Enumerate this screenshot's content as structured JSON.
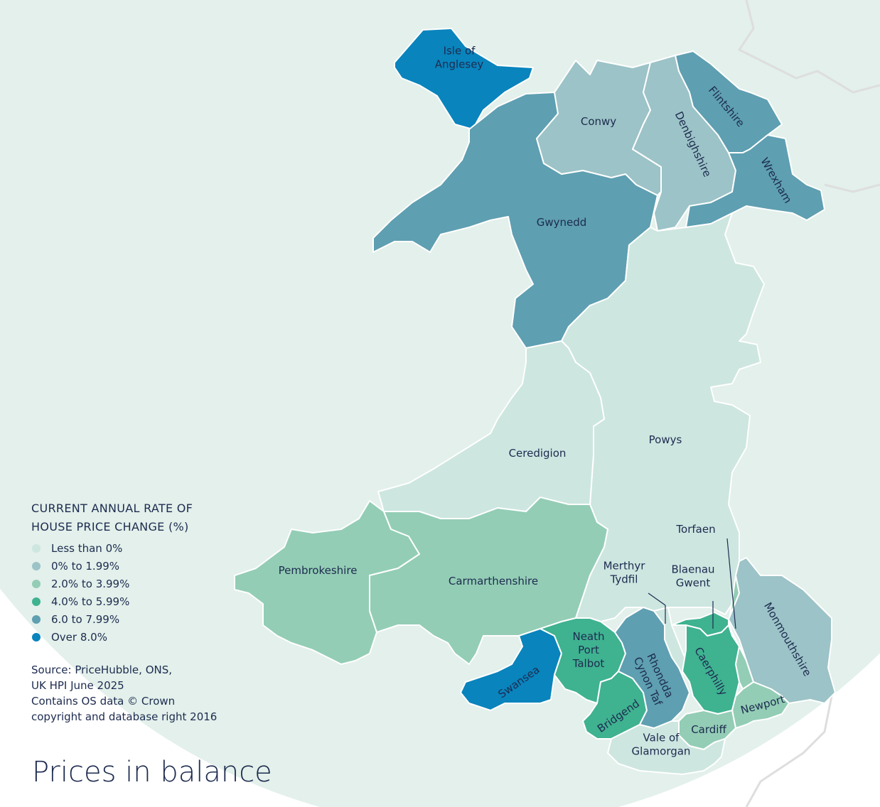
{
  "title": "Prices in balance",
  "legend": {
    "title_lines": [
      "CURRENT ANNUAL RATE OF",
      "HOUSE PRICE CHANGE (%)"
    ],
    "items": [
      {
        "label": "Less than 0%",
        "color": "#cde6e0"
      },
      {
        "label": "0% to 1.99%",
        "color": "#9cc3c7"
      },
      {
        "label": "2.0% to 3.99%",
        "color": "#93cdb5"
      },
      {
        "label": "4.0% to 5.99%",
        "color": "#3fb290"
      },
      {
        "label": "6.0 to 7.99%",
        "color": "#5e9fb1"
      },
      {
        "label": "Over 8.0%",
        "color": "#0984bd"
      }
    ]
  },
  "source_lines": [
    "Source: PriceHubble, ONS,",
    "UK HPI June 2025",
    "Contains OS data © Crown",
    "copyright and database right 2016"
  ],
  "regions": [
    {
      "name_lines": [
        "Isle of",
        "Anglesey"
      ],
      "color": "#0984bd"
    },
    {
      "name_lines": [
        "Gwynedd"
      ],
      "color": "#5e9fb1"
    },
    {
      "name_lines": [
        "Conwy"
      ],
      "color": "#9cc3c7"
    },
    {
      "name_lines": [
        "Denbighshire"
      ],
      "color": "#9cc3c7"
    },
    {
      "name_lines": [
        "Flintshire"
      ],
      "color": "#5e9fb1"
    },
    {
      "name_lines": [
        "Wrexham"
      ],
      "color": "#5e9fb1"
    },
    {
      "name_lines": [
        "Powys"
      ],
      "color": "#cde6e0"
    },
    {
      "name_lines": [
        "Ceredigion"
      ],
      "color": "#cde6e0"
    },
    {
      "name_lines": [
        "Pembrokeshire"
      ],
      "color": "#93cdb5"
    },
    {
      "name_lines": [
        "Carmarthenshire"
      ],
      "color": "#93cdb5"
    },
    {
      "name_lines": [
        "Swansea"
      ],
      "color": "#0984bd"
    },
    {
      "name_lines": [
        "Neath",
        "Port",
        "Talbot"
      ],
      "color": "#3fb290"
    },
    {
      "name_lines": [
        "Bridgend"
      ],
      "color": "#3fb290"
    },
    {
      "name_lines": [
        "Rhondda",
        "Cynon Taf"
      ],
      "color": "#5e9fb1"
    },
    {
      "name_lines": [
        "Merthyr",
        "Tydfil"
      ],
      "color": "#cde6e0"
    },
    {
      "name_lines": [
        "Caerphilly"
      ],
      "color": "#3fb290"
    },
    {
      "name_lines": [
        "Blaenau",
        "Gwent"
      ],
      "color": "#3fb290"
    },
    {
      "name_lines": [
        "Torfaen"
      ],
      "color": "#93cdb5"
    },
    {
      "name_lines": [
        "Monmouthshire"
      ],
      "color": "#9cc3c7"
    },
    {
      "name_lines": [
        "Newport"
      ],
      "color": "#93cdb5"
    },
    {
      "name_lines": [
        "Cardiff"
      ],
      "color": "#93cdb5"
    },
    {
      "name_lines": [
        "Vale of",
        "Glamorgan"
      ],
      "color": "#cde6e0"
    }
  ]
}
